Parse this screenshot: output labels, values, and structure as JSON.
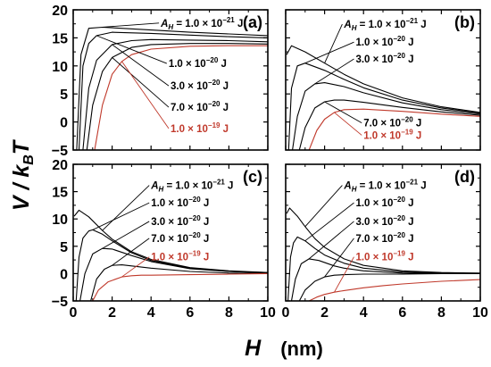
{
  "chart_data": [
    {
      "type": "line",
      "panel_label": "(a)",
      "x_range": [
        0,
        10
      ],
      "y_range": [
        -5,
        20
      ],
      "x_ticks": [
        "0",
        "2",
        "4",
        "6",
        "8",
        "10"
      ],
      "y_ticks": [
        "-5",
        "0",
        "5",
        "10",
        "15",
        "20"
      ],
      "series": [
        {
          "name": "A_H = 1.0 × 10^-21 J",
          "color": "#000000",
          "x": [
            0.18,
            0.4,
            0.8,
            1.5,
            2,
            4,
            6,
            8,
            10
          ],
          "y": [
            -5,
            12,
            16.7,
            16.9,
            16.8,
            16.4,
            16.0,
            15.7,
            15.4
          ]
        },
        {
          "name": "1.0 × 10^-20 J",
          "color": "#000000",
          "x": [
            0.3,
            0.5,
            0.8,
            1.2,
            2,
            4,
            6,
            8,
            10
          ],
          "y": [
            -5,
            10,
            14,
            15.4,
            16.0,
            15.8,
            15.5,
            15.2,
            15.0
          ]
        },
        {
          "name": "3.0 × 10^-20 J",
          "color": "#000000",
          "x": [
            0.5,
            0.8,
            1.2,
            2,
            3,
            4,
            6,
            8,
            10
          ],
          "y": [
            -5,
            6,
            11,
            13.8,
            14.5,
            14.7,
            14.6,
            14.5,
            14.3
          ]
        },
        {
          "name": "7.0 × 10^-20 J",
          "color": "#000000",
          "x": [
            0.7,
            1,
            1.5,
            2,
            3,
            4,
            6,
            8,
            10
          ],
          "y": [
            -5,
            3,
            9,
            11.5,
            13.3,
            13.8,
            14.0,
            14.0,
            13.9
          ]
        },
        {
          "name": "1.0 × 10^-19 J",
          "color": "#c0392b",
          "x": [
            1.1,
            1.5,
            2,
            2.5,
            3,
            4,
            6,
            8,
            10
          ],
          "y": [
            -5,
            3,
            8.5,
            10.8,
            12,
            13,
            13.5,
            13.6,
            13.6
          ]
        }
      ],
      "annotations": [
        {
          "pre": "A",
          "sub": "H",
          "mid": " = 1.0 × 10",
          "sup": "−21",
          "post": " J",
          "color": "#000000",
          "x": 4.5,
          "y": 17.0
        },
        {
          "pre": "",
          "sub": "",
          "mid": "1.0 × 10",
          "sup": "−20",
          "post": " J",
          "color": "#000000",
          "x": 4.9,
          "y": 9.8
        },
        {
          "pre": "",
          "sub": "",
          "mid": "3.0 × 10",
          "sup": "−20",
          "post": " J",
          "color": "#000000",
          "x": 5.0,
          "y": 5.8
        },
        {
          "pre": "",
          "sub": "",
          "mid": "7.0 × 10",
          "sup": "−20",
          "post": " J",
          "color": "#000000",
          "x": 5.0,
          "y": 2.0
        },
        {
          "pre": "",
          "sub": "",
          "mid": "1.0 × 10",
          "sup": "−19",
          "post": " J",
          "color": "#c0392b",
          "x": 5.0,
          "y": -1.8
        }
      ]
    },
    {
      "type": "line",
      "panel_label": "(b)",
      "x_range": [
        0,
        10
      ],
      "y_range": [
        -5,
        20
      ],
      "x_ticks": [
        "0",
        "2",
        "4",
        "6",
        "8",
        "10"
      ],
      "y_ticks": [
        "-5",
        "0",
        "5",
        "10",
        "15",
        "20"
      ],
      "series": [
        {
          "name": "A_H = 1.0 × 10^-21 J",
          "color": "#000000",
          "x": [
            0.05,
            0.3,
            1,
            2,
            3,
            4,
            6,
            8,
            10
          ],
          "y": [
            12,
            13.6,
            12.5,
            10.5,
            8.5,
            6.8,
            4.3,
            2.7,
            1.7
          ]
        },
        {
          "name": "1.0 × 10^-20 J",
          "color": "#000000",
          "x": [
            0.15,
            0.3,
            0.6,
            1,
            2,
            3,
            4,
            6,
            8,
            10
          ],
          "y": [
            -5,
            6,
            10,
            10.5,
            9.2,
            7.6,
            6.1,
            3.9,
            2.5,
            1.6
          ]
        },
        {
          "name": "3.0 × 10^-20 J",
          "color": "#000000",
          "x": [
            0.35,
            0.6,
            1,
            1.5,
            2,
            3,
            4,
            6,
            8,
            10
          ],
          "y": [
            -5,
            1,
            5.5,
            6.8,
            7.0,
            6.3,
            5.2,
            3.4,
            2.2,
            1.4
          ]
        },
        {
          "name": "7.0 × 10^-20 J",
          "color": "#000000",
          "x": [
            0.7,
            1,
            1.5,
            2,
            2.5,
            3,
            4,
            6,
            8,
            10
          ],
          "y": [
            -5,
            -1,
            2.5,
            3.6,
            3.9,
            3.9,
            3.5,
            2.6,
            1.8,
            1.2
          ]
        },
        {
          "name": "1.0 × 10^-19 J",
          "color": "#c0392b",
          "x": [
            1.2,
            1.6,
            2,
            2.5,
            3,
            4,
            6,
            8,
            10
          ],
          "y": [
            -5,
            -1.5,
            0.5,
            1.7,
            2.2,
            2.3,
            1.9,
            1.4,
            1.0
          ]
        }
      ],
      "annotations": [
        {
          "pre": "A",
          "sub": "H",
          "mid": " = 1.0 × 10",
          "sup": "−21",
          "post": " J",
          "color": "#000000",
          "x": 3.0,
          "y": 16.8
        },
        {
          "pre": "",
          "sub": "",
          "mid": "1.0 × 10",
          "sup": "−20",
          "post": " J",
          "color": "#000000",
          "x": 3.6,
          "y": 13.6
        },
        {
          "pre": "",
          "sub": "",
          "mid": "3.0 × 10",
          "sup": "−20",
          "post": " J",
          "color": "#000000",
          "x": 3.6,
          "y": 10.6
        },
        {
          "pre": "",
          "sub": "",
          "mid": "7.0 × 10",
          "sup": "−20",
          "post": " J",
          "color": "#000000",
          "x": 4.0,
          "y": -0.8
        },
        {
          "pre": "",
          "sub": "",
          "mid": "1.0 × 10",
          "sup": "−19",
          "post": " J",
          "color": "#c0392b",
          "x": 4.0,
          "y": -3.0
        }
      ]
    },
    {
      "type": "line",
      "panel_label": "(c)",
      "x_range": [
        0,
        10
      ],
      "y_range": [
        -5,
        20
      ],
      "x_ticks": [
        "0",
        "2",
        "4",
        "6",
        "8",
        "10"
      ],
      "y_ticks": [
        "-5",
        "0",
        "5",
        "10",
        "15",
        "20"
      ],
      "series": [
        {
          "name": "A_H = 1.0 × 10^-21 J",
          "color": "#000000",
          "x": [
            0.05,
            0.3,
            0.8,
            1.5,
            2,
            3,
            4,
            6,
            8,
            10
          ],
          "y": [
            10.5,
            11.6,
            10.4,
            7.9,
            6.3,
            4.0,
            2.6,
            1.1,
            0.5,
            0.2
          ]
        },
        {
          "name": "1.0 × 10^-20 J",
          "color": "#000000",
          "x": [
            0.15,
            0.3,
            0.5,
            0.8,
            1,
            1.5,
            2,
            3,
            4,
            6,
            8,
            10
          ],
          "y": [
            -5,
            3,
            6.5,
            7.8,
            8.0,
            7.2,
            6.0,
            3.8,
            2.4,
            1.0,
            0.4,
            0.2
          ]
        },
        {
          "name": "3.0 × 10^-20 J",
          "color": "#000000",
          "x": [
            0.35,
            0.6,
            1,
            1.5,
            2,
            3,
            4,
            6,
            8,
            10
          ],
          "y": [
            -5,
            0,
            3.6,
            4.6,
            4.5,
            3.3,
            2.2,
            0.9,
            0.4,
            0.1
          ]
        },
        {
          "name": "7.0 × 10^-20 J",
          "color": "#000000",
          "x": [
            0.9,
            1.2,
            1.6,
            2,
            2.5,
            3,
            4,
            6,
            8,
            10
          ],
          "y": [
            -5,
            -1,
            0.8,
            1.5,
            1.6,
            1.4,
            1.0,
            0.4,
            0.1,
            0
          ]
        },
        {
          "name": "1.0 × 10^-19 J",
          "color": "#c0392b",
          "x": [
            1.0,
            1.3,
            1.8,
            2.5,
            3,
            3.5,
            4,
            6,
            8,
            10
          ],
          "y": [
            -5,
            -3,
            -1.5,
            -0.6,
            -0.4,
            -0.3,
            -0.3,
            -0.2,
            -0.1,
            0
          ]
        }
      ],
      "annotations": [
        {
          "pre": "A",
          "sub": "H",
          "mid": " = 1.0 × 10",
          "sup": "−21",
          "post": " J",
          "color": "#000000",
          "x": 4.0,
          "y": 15.5
        },
        {
          "pre": "",
          "sub": "",
          "mid": "1.0 × 10",
          "sup": "−20",
          "post": " J",
          "color": "#000000",
          "x": 4.0,
          "y": 12.3
        },
        {
          "pre": "",
          "sub": "",
          "mid": "3.0 × 10",
          "sup": "−20",
          "post": " J",
          "color": "#000000",
          "x": 4.0,
          "y": 8.9
        },
        {
          "pre": "",
          "sub": "",
          "mid": "7.0 × 10",
          "sup": "−20",
          "post": " J",
          "color": "#000000",
          "x": 4.0,
          "y": 5.8
        },
        {
          "pre": "",
          "sub": "",
          "mid": "1.0 × 10",
          "sup": "−19",
          "post": " J",
          "color": "#c0392b",
          "x": 4.0,
          "y": 2.4
        }
      ]
    },
    {
      "type": "line",
      "panel_label": "(d)",
      "x_range": [
        0,
        10
      ],
      "y_range": [
        -5,
        20
      ],
      "x_ticks": [
        "0",
        "2",
        "4",
        "6",
        "8",
        "10"
      ],
      "y_ticks": [
        "-5",
        "0",
        "5",
        "10",
        "15",
        "20"
      ],
      "series": [
        {
          "name": "A_H = 1.0 × 10^-21 J",
          "color": "#000000",
          "x": [
            0.05,
            0.2,
            0.6,
            1,
            1.5,
            2,
            3,
            4,
            6,
            8,
            10
          ],
          "y": [
            11,
            12,
            10.5,
            8.6,
            6.4,
            4.8,
            2.7,
            1.5,
            0.5,
            0.2,
            0.1
          ]
        },
        {
          "name": "1.0 × 10^-20 J",
          "color": "#000000",
          "x": [
            0.12,
            0.25,
            0.4,
            0.6,
            1,
            1.5,
            2,
            3,
            4,
            6,
            8,
            10
          ],
          "y": [
            -5,
            3,
            5.6,
            6.7,
            6.0,
            4.6,
            3.4,
            1.9,
            1.0,
            0.3,
            0.1,
            0
          ]
        },
        {
          "name": "3.0 × 10^-20 J",
          "color": "#000000",
          "x": [
            0.3,
            0.5,
            0.8,
            1.2,
            1.7,
            2.5,
            3,
            4,
            6,
            8,
            10
          ],
          "y": [
            -5,
            -1,
            1.8,
            2.7,
            2.4,
            1.4,
            1.0,
            0.5,
            0.1,
            0,
            0
          ]
        },
        {
          "name": "7.0 × 10^-20 J",
          "color": "#000000",
          "x": [
            0.7,
            1,
            1.5,
            2,
            2.5,
            3,
            4,
            6,
            8,
            10
          ],
          "y": [
            -5,
            -3,
            -1.4,
            -0.6,
            -0.3,
            -0.2,
            -0.1,
            -0.1,
            0,
            0
          ]
        },
        {
          "name": "1.0 × 10^-19 J",
          "color": "#c0392b",
          "x": [
            1.2,
            1.6,
            2,
            2.5,
            3,
            4,
            5,
            6,
            8,
            10
          ],
          "y": [
            -5,
            -4.3,
            -3.8,
            -3.4,
            -3.1,
            -2.6,
            -2.2,
            -1.9,
            -1.4,
            -1.1
          ]
        }
      ],
      "annotations": [
        {
          "pre": "A",
          "sub": "H",
          "mid": " = 1.0 × 10",
          "sup": "−21",
          "post": " J",
          "color": "#000000",
          "x": 3.0,
          "y": 15.5
        },
        {
          "pre": "",
          "sub": "",
          "mid": "1.0 × 10",
          "sup": "−20",
          "post": " J",
          "color": "#000000",
          "x": 3.6,
          "y": 12.3
        },
        {
          "pre": "",
          "sub": "",
          "mid": "3.0 × 10",
          "sup": "−20",
          "post": " J",
          "color": "#000000",
          "x": 3.6,
          "y": 8.9
        },
        {
          "pre": "",
          "sub": "",
          "mid": "7.0 × 10",
          "sup": "−20",
          "post": " J",
          "color": "#000000",
          "x": 3.6,
          "y": 5.8
        },
        {
          "pre": "",
          "sub": "",
          "mid": "1.0 × 10",
          "sup": "−19",
          "post": " J",
          "color": "#c0392b",
          "x": 3.6,
          "y": 2.4
        }
      ]
    }
  ],
  "ylabel": {
    "v": "V",
    "slash": " / ",
    "k": "k",
    "sub": "B",
    "t": "T"
  },
  "xlabel": {
    "h": "H",
    "unit": "(nm)"
  },
  "colors": {
    "black": "#000000",
    "red": "#c0392b"
  }
}
